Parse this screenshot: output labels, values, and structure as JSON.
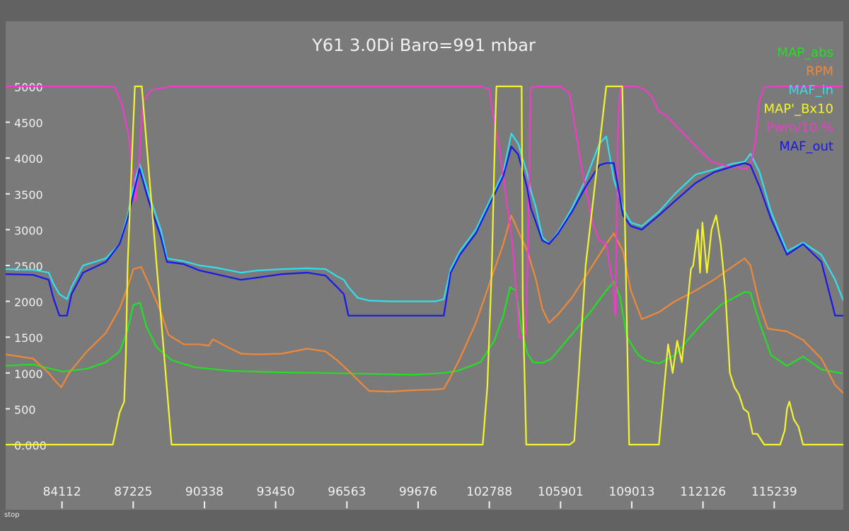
{
  "status_text": "stop",
  "chart_data": {
    "type": "line",
    "title": "Y61 3.0Di Baro=991 mbar",
    "xlabel": "",
    "ylabel": "",
    "ylim": [
      0,
      5000
    ],
    "xlim": [
      81650,
      118260
    ],
    "y_ticks": [
      {
        "value": 0,
        "label": "0.000"
      },
      {
        "value": 500,
        "label": "500"
      },
      {
        "value": 1000,
        "label": "1000"
      },
      {
        "value": 1500,
        "label": "1500"
      },
      {
        "value": 2000,
        "label": "2000"
      },
      {
        "value": 2500,
        "label": "2500"
      },
      {
        "value": 3000,
        "label": "3000"
      },
      {
        "value": 3500,
        "label": "3500"
      },
      {
        "value": 4000,
        "label": "4000"
      },
      {
        "value": 4500,
        "label": "4500"
      },
      {
        "value": 5000,
        "label": "5000"
      }
    ],
    "x_ticks": [
      84112,
      87225,
      90338,
      93450,
      96563,
      99676,
      102788,
      105901,
      109013,
      112126,
      115239
    ],
    "grid": false,
    "legend_position": "top-right",
    "series": [
      {
        "name": "MAP_abs",
        "color": "#22e022",
        "x": [
          81650,
          82850,
          84130,
          85230,
          86030,
          86630,
          86980,
          87230,
          87520,
          87800,
          88250,
          88900,
          89900,
          91500,
          93500,
          95400,
          97400,
          99400,
          100800,
          101400,
          102400,
          103000,
          103400,
          103700,
          103950,
          104200,
          104450,
          104700,
          105100,
          105500,
          105950,
          106500,
          107200,
          107900,
          108230,
          108500,
          108800,
          109300,
          109600,
          110200,
          110900,
          111300,
          112100,
          112900,
          113650,
          113950,
          114200,
          114600,
          115100,
          115800,
          116500,
          117300,
          118260
        ],
        "y": [
          1100,
          1120,
          1020,
          1060,
          1150,
          1300,
          1600,
          1950,
          1980,
          1650,
          1360,
          1180,
          1080,
          1030,
          1010,
          1000,
          990,
          975,
          1000,
          1030,
          1150,
          1450,
          1800,
          2200,
          2150,
          1600,
          1270,
          1150,
          1140,
          1200,
          1370,
          1580,
          1850,
          2150,
          2280,
          2060,
          1500,
          1250,
          1180,
          1130,
          1250,
          1400,
          1700,
          1950,
          2080,
          2130,
          2120,
          1700,
          1250,
          1100,
          1230,
          1050,
          990
        ]
      },
      {
        "name": "RPM",
        "color": "#f08838",
        "x": [
          81650,
          82850,
          83530,
          83730,
          84080,
          84420,
          85200,
          86030,
          86630,
          86980,
          87230,
          87570,
          87970,
          88430,
          88770,
          89430,
          90130,
          90530,
          90710,
          91230,
          91930,
          92630,
          93730,
          94830,
          95630,
          96130,
          96730,
          97530,
          98430,
          99430,
          100430,
          100800,
          101100,
          101500,
          102200,
          102800,
          103400,
          103750,
          104050,
          104430,
          104830,
          105100,
          105400,
          105800,
          106400,
          107200,
          107900,
          108230,
          108630,
          108970,
          109450,
          110200,
          110900,
          111800,
          112600,
          113400,
          113950,
          114200,
          114600,
          114950,
          115800,
          116500,
          117300,
          117900,
          118260
        ],
        "y": [
          1260,
          1200,
          1000,
          920,
          800,
          1000,
          1300,
          1560,
          1900,
          2200,
          2450,
          2480,
          2200,
          1850,
          1530,
          1400,
          1400,
          1380,
          1470,
          1380,
          1270,
          1260,
          1270,
          1340,
          1300,
          1180,
          1000,
          750,
          740,
          760,
          770,
          780,
          950,
          1200,
          1700,
          2250,
          2800,
          3200,
          2980,
          2720,
          2300,
          1900,
          1700,
          1820,
          2050,
          2450,
          2800,
          2950,
          2700,
          2150,
          1750,
          1850,
          2000,
          2150,
          2300,
          2480,
          2600,
          2500,
          1950,
          1620,
          1580,
          1460,
          1200,
          830,
          720
        ]
      },
      {
        "name": "MAF_in",
        "color": "#30e0ec",
        "x": [
          81650,
          82850,
          83530,
          83730,
          84000,
          84330,
          84530,
          85030,
          86030,
          86630,
          86980,
          87230,
          87500,
          87900,
          88430,
          88700,
          89430,
          90130,
          90830,
          91930,
          92630,
          93730,
          94830,
          95630,
          96130,
          96430,
          96630,
          97030,
          97530,
          98430,
          99430,
          100430,
          100800,
          101100,
          101500,
          102200,
          102800,
          103400,
          103750,
          104050,
          104430,
          104600,
          104830,
          105100,
          105400,
          105800,
          106400,
          107000,
          107600,
          107900,
          108230,
          108630,
          108970,
          109450,
          110200,
          110900,
          111800,
          112600,
          113400,
          113950,
          114200,
          114600,
          115100,
          115800,
          116500,
          117300,
          117900,
          118260
        ],
        "y": [
          2450,
          2440,
          2400,
          2250,
          2100,
          2030,
          2200,
          2500,
          2600,
          2800,
          3200,
          3600,
          3920,
          3500,
          3000,
          2600,
          2560,
          2500,
          2470,
          2400,
          2430,
          2450,
          2460,
          2450,
          2350,
          2300,
          2200,
          2050,
          2010,
          2000,
          2000,
          2000,
          2030,
          2450,
          2700,
          3000,
          3400,
          3800,
          4340,
          4200,
          3800,
          3550,
          3300,
          2900,
          2800,
          2970,
          3300,
          3700,
          4200,
          4300,
          3700,
          3300,
          3100,
          3050,
          3250,
          3500,
          3770,
          3840,
          3920,
          3950,
          4060,
          3800,
          3250,
          2700,
          2820,
          2650,
          2300,
          2010
        ]
      },
      {
        "name": "MAP'_Bx10",
        "color": "#f4f430",
        "x": [
          81650,
          82850,
          84100,
          85200,
          86030,
          86230,
          86330,
          86630,
          86830,
          86900,
          86980,
          87230,
          87300,
          87400,
          87500,
          87600,
          88900,
          91500,
          95400,
          99400,
          101600,
          102500,
          102700,
          102900,
          103050,
          103100,
          103300,
          103600,
          103800,
          103900,
          104100,
          104200,
          104250,
          104400,
          106000,
          106300,
          106500,
          106700,
          107000,
          107900,
          108230,
          108400,
          108600,
          108900,
          110200,
          110400,
          110600,
          110800,
          111000,
          111200,
          111400,
          111600,
          111700,
          111900,
          112000,
          112100,
          112300,
          112500,
          112700,
          112900,
          113100,
          113300,
          113500,
          113700,
          113900,
          114100,
          114300,
          114500,
          114800,
          115200,
          115500,
          115700,
          115800,
          115900,
          116100,
          116300,
          116500,
          116700,
          117300,
          118260
        ],
        "y": [
          0,
          0,
          0,
          0,
          0,
          0,
          0,
          450,
          600,
          1200,
          2500,
          4500,
          5000,
          5000,
          5000,
          5000,
          0,
          0,
          0,
          0,
          0,
          0,
          800,
          2500,
          4500,
          5000,
          5000,
          5000,
          5000,
          5000,
          5000,
          5000,
          2000,
          0,
          0,
          0,
          50,
          1000,
          2500,
          5000,
          5000,
          5000,
          5000,
          0,
          0,
          700,
          1400,
          1000,
          1450,
          1150,
          1800,
          2450,
          2500,
          3000,
          2400,
          3100,
          2400,
          3000,
          3200,
          2800,
          2150,
          1000,
          800,
          700,
          500,
          450,
          150,
          150,
          0,
          0,
          0,
          200,
          500,
          600,
          350,
          250,
          0,
          0,
          0,
          0
        ]
      },
      {
        "name": "Pwm/10 %",
        "color": "#f03cc8",
        "x": [
          81650,
          82850,
          84100,
          85500,
          86030,
          86430,
          86730,
          87030,
          87230,
          87330,
          87500,
          87600,
          87680,
          88030,
          88900,
          91500,
          95400,
          99400,
          101600,
          102400,
          102800,
          102900,
          103200,
          103500,
          103800,
          103900,
          104000,
          104100,
          104200,
          104300,
          104400,
          104600,
          104900,
          105900,
          106300,
          106600,
          106800,
          107300,
          107600,
          107900,
          108200,
          108300,
          108400,
          108500,
          108600,
          108700,
          109200,
          109600,
          109900,
          110200,
          110500,
          110800,
          111100,
          111400,
          112000,
          112500,
          113000,
          113400,
          113700,
          113900,
          114000,
          114200,
          114400,
          114600,
          114800,
          115500,
          116500,
          117300,
          118260
        ],
        "y": [
          5000,
          5000,
          5000,
          5000,
          5000,
          4990,
          4750,
          4300,
          3750,
          3400,
          4000,
          4600,
          4800,
          4950,
          5000,
          5000,
          5000,
          5000,
          5000,
          5000,
          4960,
          4700,
          4200,
          3500,
          2800,
          2400,
          2000,
          1500,
          1500,
          1500,
          1600,
          4980,
          5000,
          5000,
          4900,
          4300,
          3900,
          3100,
          2850,
          2800,
          2200,
          1800,
          4300,
          4950,
          5000,
          5000,
          5000,
          4950,
          4850,
          4650,
          4600,
          4500,
          4400,
          4300,
          4100,
          3950,
          3900,
          3870,
          3870,
          3850,
          3850,
          3900,
          4200,
          4800,
          4990,
          5000,
          5000,
          5000,
          5000
        ]
      },
      {
        "name": "MAF_out",
        "color": "#1818ec",
        "x": [
          81650,
          82850,
          83530,
          83730,
          84000,
          84330,
          84530,
          85030,
          86030,
          86630,
          86980,
          87230,
          87500,
          87900,
          88430,
          88700,
          89430,
          90130,
          90830,
          91930,
          92630,
          93730,
          94830,
          95630,
          96130,
          96430,
          96630,
          97030,
          97530,
          98430,
          99430,
          100430,
          100800,
          101100,
          101500,
          102200,
          102800,
          103400,
          103750,
          104050,
          104430,
          104600,
          104830,
          105100,
          105400,
          105800,
          106400,
          107000,
          107600,
          107900,
          108230,
          108630,
          108970,
          109450,
          110200,
          110900,
          111800,
          112600,
          113400,
          113950,
          114200,
          114600,
          115100,
          115800,
          116500,
          117300,
          117900,
          118260
        ],
        "y": [
          2380,
          2370,
          2300,
          2050,
          1800,
          1800,
          2100,
          2400,
          2550,
          2800,
          3150,
          3500,
          3850,
          3400,
          2900,
          2550,
          2520,
          2430,
          2380,
          2300,
          2330,
          2380,
          2400,
          2360,
          2200,
          2100,
          1800,
          1800,
          1800,
          1800,
          1800,
          1800,
          1800,
          2400,
          2650,
          2950,
          3350,
          3750,
          4160,
          4050,
          3600,
          3300,
          3100,
          2850,
          2800,
          2950,
          3250,
          3600,
          3900,
          3930,
          3930,
          3200,
          3050,
          3000,
          3200,
          3400,
          3650,
          3800,
          3880,
          3930,
          3900,
          3600,
          3150,
          2650,
          2800,
          2550,
          1800,
          1800
        ]
      }
    ]
  }
}
